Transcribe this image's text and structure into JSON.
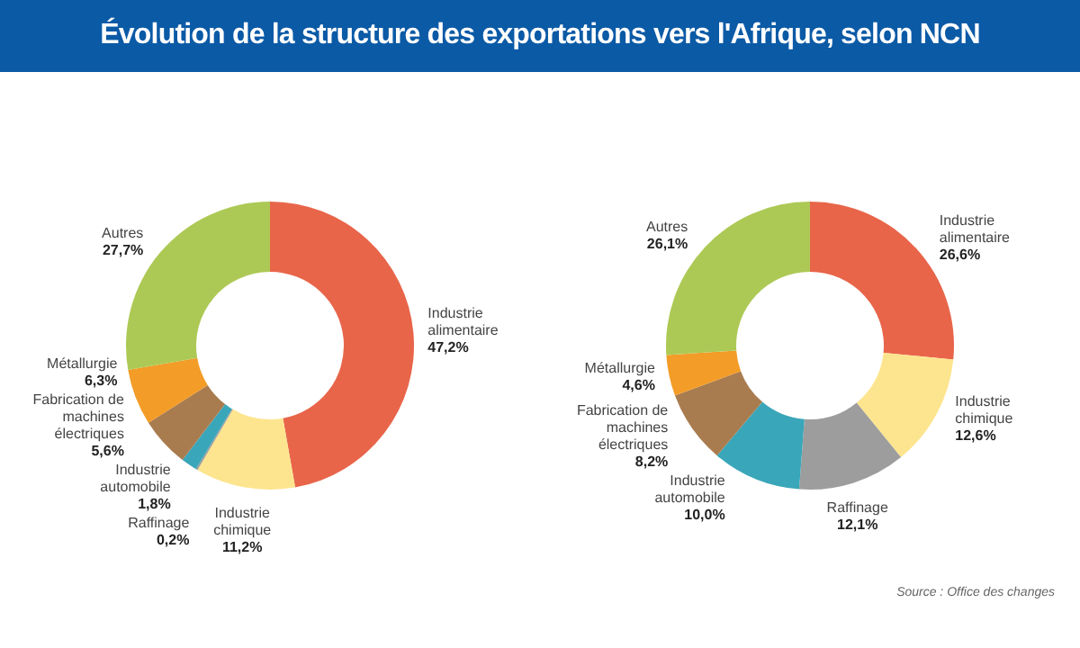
{
  "chart_data": [
    {
      "type": "donut",
      "title": "Évolution de la structure des exportations vers l'Afrique, selon NCN",
      "categories": [
        "Industrie alimentaire",
        "Industrie chimique",
        "Raffinage",
        "Industrie automobile",
        "Fabrication de machines électriques",
        "Métallurgie",
        "Autres"
      ],
      "values": [
        47.2,
        11.2,
        0.2,
        1.8,
        5.6,
        6.3,
        27.7
      ],
      "colors": [
        "#e8654a",
        "#fde58f",
        "#9d9d9d",
        "#3aa6b9",
        "#a97c50",
        "#f39c27",
        "#adc955"
      ],
      "value_labels": [
        "47,2%",
        "11,2%",
        "0,2%",
        "1,8%",
        "5,6%",
        "6,3%",
        "27,7%"
      ]
    },
    {
      "type": "donut",
      "categories": [
        "Industrie alimentaire",
        "Industrie chimique",
        "Raffinage",
        "Industrie automobile",
        "Fabrication de machines électriques",
        "Métallurgie",
        "Autres"
      ],
      "values": [
        26.6,
        12.6,
        12.1,
        10.0,
        8.2,
        4.6,
        26.1
      ],
      "colors": [
        "#e8654a",
        "#fde58f",
        "#9d9d9d",
        "#3aa6b9",
        "#a97c50",
        "#f39c27",
        "#adc955"
      ],
      "value_labels": [
        "26,6%",
        "12,6%",
        "12,1%",
        "10,0%",
        "8,2%",
        "4,6%",
        "26,1%"
      ],
      "annotations": [
        "Source : Office des changes"
      ]
    }
  ]
}
